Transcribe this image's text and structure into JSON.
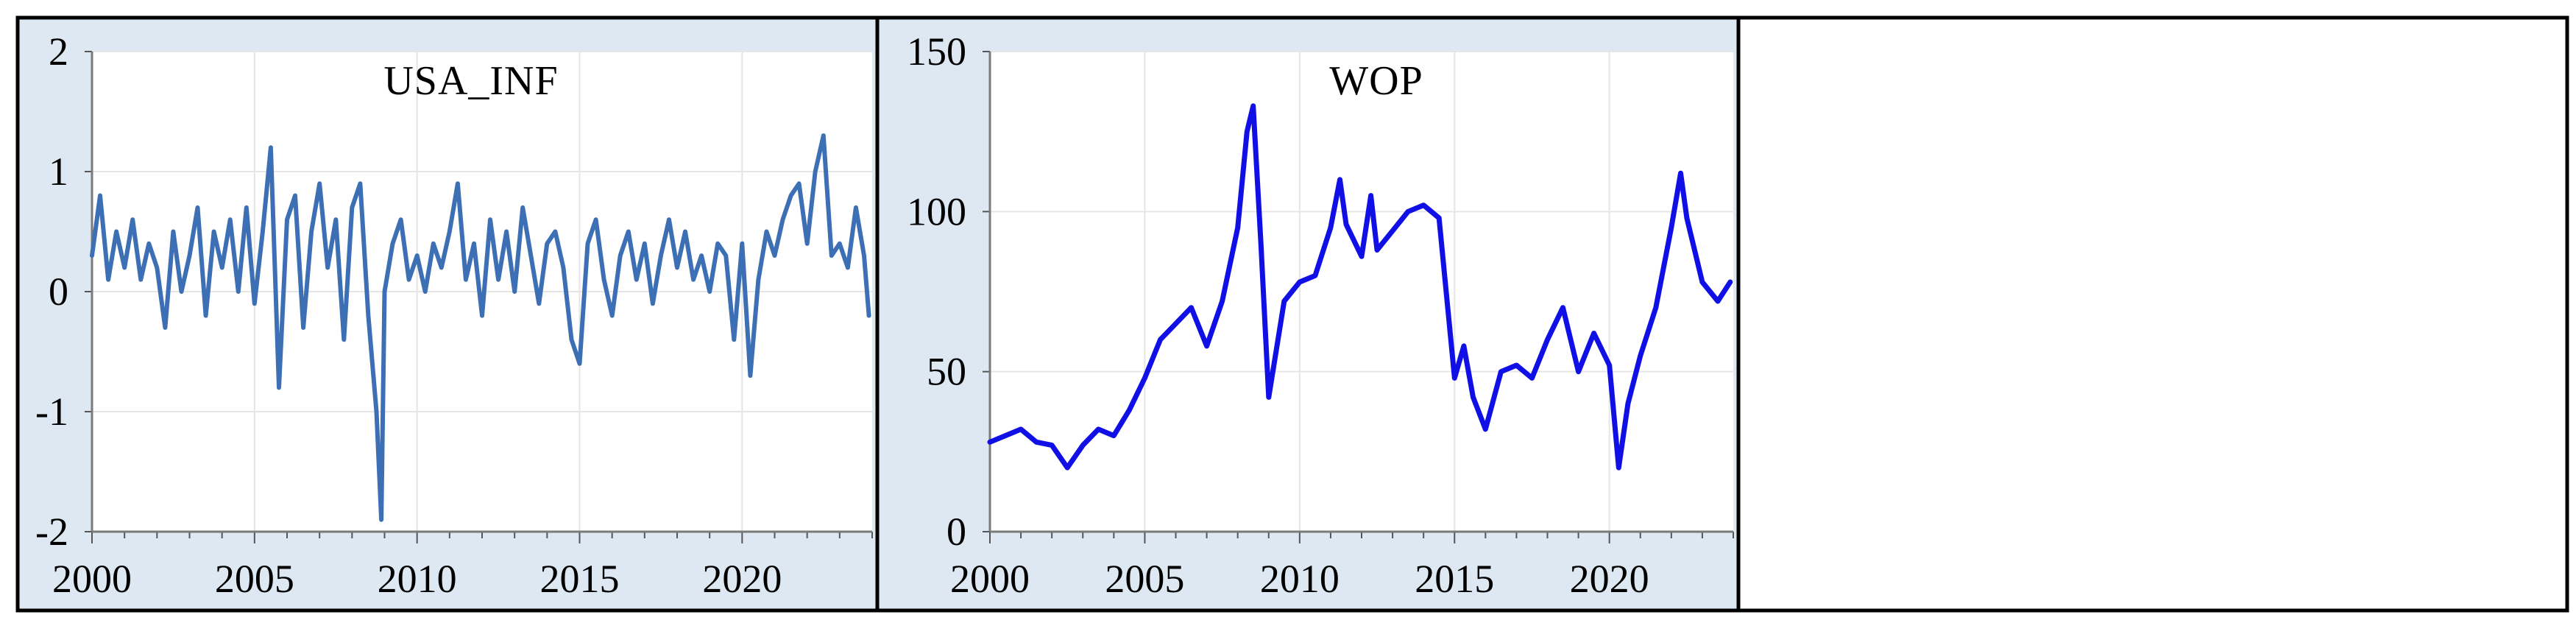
{
  "figure": {
    "panel_background": "#dde8f3",
    "plot_background": "#ffffff",
    "grid_color": "#e6e6e6",
    "border_color": "#000000",
    "panels": [
      "USA_INF",
      "WOP",
      "empty"
    ]
  },
  "chart_data": [
    {
      "type": "line",
      "title": "USA_INF",
      "xlabel": "",
      "ylabel": "",
      "line_color": "#3d6fb5",
      "xlim": [
        2000,
        2024
      ],
      "ylim": [
        -2,
        2
      ],
      "grid": true,
      "legend": "none",
      "x_ticks": [
        "2000",
        "2005",
        "2010",
        "2015",
        "2020"
      ],
      "y_ticks": [
        "2",
        "1",
        "0",
        "-1",
        "-2"
      ],
      "series": [
        {
          "x": [
            2000.0,
            2000.25,
            2000.5,
            2000.75,
            2001.0,
            2001.25,
            2001.5,
            2001.75,
            2002.0,
            2002.25,
            2002.5,
            2002.75,
            2003.0,
            2003.25,
            2003.5,
            2003.75,
            2004.0,
            2004.25,
            2004.5,
            2004.75,
            2005.0,
            2005.25,
            2005.5,
            2005.75,
            2006.0,
            2006.25,
            2006.5,
            2006.75,
            2007.0,
            2007.25,
            2007.5,
            2007.75,
            2008.0,
            2008.25,
            2008.5,
            2008.75,
            2008.9,
            2009.0,
            2009.25,
            2009.5,
            2009.75,
            2010.0,
            2010.25,
            2010.5,
            2010.75,
            2011.0,
            2011.25,
            2011.5,
            2011.75,
            2012.0,
            2012.25,
            2012.5,
            2012.75,
            2013.0,
            2013.25,
            2013.5,
            2013.75,
            2014.0,
            2014.25,
            2014.5,
            2014.75,
            2015.0,
            2015.25,
            2015.5,
            2015.75,
            2016.0,
            2016.25,
            2016.5,
            2016.75,
            2017.0,
            2017.25,
            2017.5,
            2017.75,
            2018.0,
            2018.25,
            2018.5,
            2018.75,
            2019.0,
            2019.25,
            2019.5,
            2019.75,
            2020.0,
            2020.25,
            2020.5,
            2020.75,
            2021.0,
            2021.25,
            2021.5,
            2021.75,
            2022.0,
            2022.25,
            2022.5,
            2022.75,
            2023.0,
            2023.25,
            2023.5,
            2023.75,
            2023.9
          ],
          "values": [
            0.3,
            0.8,
            0.1,
            0.5,
            0.2,
            0.6,
            0.1,
            0.4,
            0.2,
            -0.3,
            0.5,
            0.0,
            0.3,
            0.7,
            -0.2,
            0.5,
            0.2,
            0.6,
            0.0,
            0.7,
            -0.1,
            0.5,
            1.2,
            -0.8,
            0.6,
            0.8,
            -0.3,
            0.5,
            0.9,
            0.2,
            0.6,
            -0.4,
            0.7,
            0.9,
            -0.2,
            -1.0,
            -1.9,
            0.0,
            0.4,
            0.6,
            0.1,
            0.3,
            0.0,
            0.4,
            0.2,
            0.5,
            0.9,
            0.1,
            0.4,
            -0.2,
            0.6,
            0.1,
            0.5,
            0.0,
            0.7,
            0.3,
            -0.1,
            0.4,
            0.5,
            0.2,
            -0.4,
            -0.6,
            0.4,
            0.6,
            0.1,
            -0.2,
            0.3,
            0.5,
            0.1,
            0.4,
            -0.1,
            0.3,
            0.6,
            0.2,
            0.5,
            0.1,
            0.3,
            0.0,
            0.4,
            0.3,
            -0.4,
            0.4,
            -0.7,
            0.1,
            0.5,
            0.3,
            0.6,
            0.8,
            0.9,
            0.4,
            1.0,
            1.3,
            0.3,
            0.4,
            0.2,
            0.7,
            0.3,
            -0.2
          ]
        }
      ]
    },
    {
      "type": "line",
      "title": "WOP",
      "xlabel": "",
      "ylabel": "",
      "line_color": "#1010e6",
      "xlim": [
        2000,
        2024
      ],
      "ylim": [
        0,
        150
      ],
      "grid": true,
      "legend": "none",
      "x_ticks": [
        "2000",
        "2005",
        "2010",
        "2015",
        "2020"
      ],
      "y_ticks": [
        "150",
        "100",
        "50",
        "0"
      ],
      "series": [
        {
          "x": [
            2000.0,
            2000.5,
            2001.0,
            2001.5,
            2002.0,
            2002.5,
            2003.0,
            2003.5,
            2004.0,
            2004.5,
            2005.0,
            2005.5,
            2006.0,
            2006.5,
            2007.0,
            2007.5,
            2008.0,
            2008.3,
            2008.5,
            2008.75,
            2009.0,
            2009.5,
            2010.0,
            2010.5,
            2011.0,
            2011.3,
            2011.5,
            2012.0,
            2012.3,
            2012.5,
            2013.0,
            2013.5,
            2014.0,
            2014.5,
            2015.0,
            2015.3,
            2015.6,
            2016.0,
            2016.5,
            2017.0,
            2017.5,
            2018.0,
            2018.5,
            2019.0,
            2019.5,
            2020.0,
            2020.3,
            2020.6,
            2021.0,
            2021.5,
            2022.0,
            2022.3,
            2022.5,
            2023.0,
            2023.5,
            2023.9
          ],
          "values": [
            28,
            30,
            32,
            28,
            27,
            20,
            27,
            32,
            30,
            38,
            48,
            60,
            65,
            70,
            58,
            72,
            95,
            125,
            133,
            90,
            42,
            72,
            78,
            80,
            95,
            110,
            96,
            86,
            105,
            88,
            94,
            100,
            102,
            98,
            48,
            58,
            42,
            32,
            50,
            52,
            48,
            60,
            70,
            50,
            62,
            52,
            20,
            40,
            55,
            70,
            95,
            112,
            98,
            78,
            72,
            78
          ]
        }
      ]
    }
  ]
}
